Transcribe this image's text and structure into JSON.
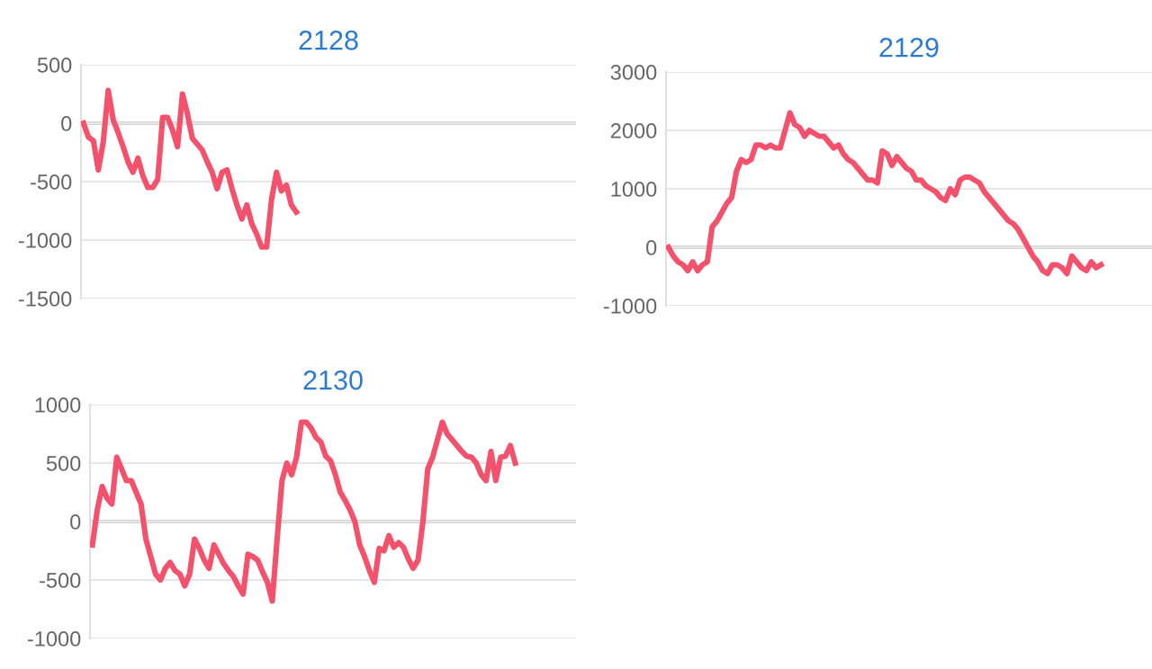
{
  "chart_data": [
    {
      "type": "line",
      "title": "2128",
      "categories": [
        null,
        null,
        null,
        null,
        null,
        null,
        null,
        null,
        null,
        null,
        null,
        null,
        null,
        null,
        null,
        null,
        null,
        null,
        null,
        null,
        null,
        null,
        null,
        null,
        null,
        null,
        null,
        null,
        null,
        null,
        null,
        null,
        null,
        null,
        null,
        null,
        null,
        null,
        null,
        null,
        null,
        null,
        null,
        null,
        null,
        null,
        null,
        null,
        null,
        null,
        null,
        null,
        null,
        null,
        null,
        null,
        null,
        null,
        null,
        null,
        null,
        null,
        null,
        null,
        null,
        null,
        null,
        null,
        null,
        null,
        null,
        null,
        null,
        null,
        null,
        null,
        null,
        null,
        null,
        null,
        null,
        null,
        null,
        null,
        null,
        null,
        null,
        null,
        null,
        null,
        null,
        null,
        null,
        null,
        null,
        null,
        null,
        null,
        null,
        null
      ],
      "series": [
        {
          "color": "#f4516c",
          "values": [
            0,
            -120,
            -150,
            -400,
            -160,
            280,
            30,
            -80,
            -200,
            -330,
            -420,
            -300,
            -450,
            -550,
            -550,
            -480,
            50,
            50,
            -60,
            -200,
            250,
            80,
            -130,
            -180,
            -230,
            -330,
            -420,
            -560,
            -420,
            -400,
            -560,
            -700,
            -820,
            -700,
            -860,
            -950,
            -1060,
            -1060,
            -650,
            -420,
            -580,
            -530,
            -700,
            -760,
            null,
            null,
            null,
            null,
            null,
            null,
            null,
            null,
            null,
            null,
            null,
            null,
            null,
            null,
            null,
            null,
            null,
            null,
            null,
            null,
            null,
            null,
            null,
            null,
            null,
            null,
            null,
            null,
            null,
            null,
            null,
            null,
            null,
            null,
            null,
            null,
            null,
            null,
            null,
            null,
            null,
            null,
            null,
            null,
            null,
            null,
            null,
            null,
            null,
            null,
            null,
            null,
            null,
            null,
            null,
            null
          ]
        }
      ],
      "ylim": [
        -1500,
        500
      ],
      "yticks": [
        -1500,
        -1000,
        -500,
        0,
        500
      ],
      "grid": "y",
      "tick_labels": "y",
      "marker": "none",
      "line_style": "solid",
      "ref_lines": [
        {
          "axis": "y",
          "value": 0,
          "color": "#aaaaaa"
        }
      ]
    },
    {
      "type": "line",
      "title": "2129",
      "categories": [
        null,
        null,
        null,
        null,
        null,
        null,
        null,
        null,
        null,
        null,
        null,
        null,
        null,
        null,
        null,
        null,
        null,
        null,
        null,
        null,
        null,
        null,
        null,
        null,
        null,
        null,
        null,
        null,
        null,
        null,
        null,
        null,
        null,
        null,
        null,
        null,
        null,
        null,
        null,
        null,
        null,
        null,
        null,
        null,
        null,
        null,
        null,
        null,
        null,
        null,
        null,
        null,
        null,
        null,
        null,
        null,
        null,
        null,
        null,
        null,
        null,
        null,
        null,
        null,
        null,
        null,
        null,
        null,
        null,
        null,
        null,
        null,
        null,
        null,
        null,
        null,
        null,
        null,
        null,
        null,
        null,
        null,
        null,
        null,
        null,
        null,
        null,
        null,
        null,
        null,
        null,
        null,
        null,
        null,
        null,
        null,
        null,
        null,
        null,
        null
      ],
      "series": [
        {
          "color": "#f4516c",
          "values": [
            0,
            -150,
            -250,
            -300,
            -400,
            -250,
            -400,
            -300,
            -250,
            350,
            450,
            600,
            750,
            850,
            1300,
            1500,
            1450,
            1500,
            1750,
            1750,
            1700,
            1750,
            1700,
            1700,
            2000,
            2300,
            2100,
            2050,
            1900,
            2000,
            1950,
            1900,
            1900,
            1800,
            1700,
            1750,
            1600,
            1500,
            1450,
            1350,
            1250,
            1150,
            1150,
            1100,
            1650,
            1600,
            1400,
            1550,
            1450,
            1350,
            1300,
            1150,
            1150,
            1050,
            1000,
            950,
            850,
            800,
            1000,
            900,
            1150,
            1200,
            1200,
            1150,
            1100,
            950,
            850,
            750,
            650,
            550,
            450,
            400,
            300,
            150,
            0,
            -150,
            -250,
            -400,
            -450,
            -300,
            -300,
            -350,
            -450,
            -150,
            -250,
            -350,
            -400,
            -250,
            -350,
            -300,
            null,
            null,
            null,
            null,
            null,
            null,
            null,
            null,
            null,
            null
          ]
        }
      ],
      "ylim": [
        -1000,
        3000
      ],
      "yticks": [
        -1000,
        0,
        1000,
        2000,
        3000
      ],
      "grid": "y",
      "tick_labels": "y",
      "marker": "none",
      "line_style": "solid",
      "ref_lines": [
        {
          "axis": "y",
          "value": 0,
          "color": "#aaaaaa"
        }
      ]
    },
    {
      "type": "line",
      "title": "2130",
      "categories": [
        null,
        null,
        null,
        null,
        null,
        null,
        null,
        null,
        null,
        null,
        null,
        null,
        null,
        null,
        null,
        null,
        null,
        null,
        null,
        null,
        null,
        null,
        null,
        null,
        null,
        null,
        null,
        null,
        null,
        null,
        null,
        null,
        null,
        null,
        null,
        null,
        null,
        null,
        null,
        null,
        null,
        null,
        null,
        null,
        null,
        null,
        null,
        null,
        null,
        null,
        null,
        null,
        null,
        null,
        null,
        null,
        null,
        null,
        null,
        null,
        null,
        null,
        null,
        null,
        null,
        null,
        null,
        null,
        null,
        null,
        null,
        null,
        null,
        null,
        null,
        null,
        null,
        null,
        null,
        null,
        null,
        null,
        null,
        null,
        null,
        null,
        null,
        null,
        null,
        null,
        null,
        null,
        null,
        null,
        null,
        null,
        null,
        null,
        null,
        null
      ],
      "series": [
        {
          "color": "#f4516c",
          "values": [
            -200,
            100,
            300,
            200,
            150,
            550,
            450,
            350,
            350,
            250,
            150,
            -150,
            -300,
            -450,
            -500,
            -400,
            -350,
            -420,
            -450,
            -550,
            -450,
            -150,
            -230,
            -330,
            -400,
            -200,
            -280,
            -360,
            -420,
            -470,
            -550,
            -620,
            -280,
            -300,
            -330,
            -430,
            -520,
            -680,
            -150,
            350,
            500,
            400,
            550,
            850,
            850,
            800,
            720,
            680,
            560,
            520,
            400,
            250,
            180,
            100,
            0,
            -200,
            -300,
            -420,
            -520,
            -230,
            -250,
            -120,
            -220,
            -180,
            -220,
            -320,
            -400,
            -330,
            0,
            450,
            550,
            700,
            850,
            750,
            700,
            650,
            600,
            560,
            550,
            500,
            400,
            350,
            600,
            350,
            550,
            560,
            650,
            500,
            null,
            null,
            null,
            null,
            null,
            null,
            null,
            null,
            null,
            null,
            null,
            null
          ]
        }
      ],
      "ylim": [
        -1000,
        1000
      ],
      "yticks": [
        -1000,
        -500,
        0,
        500,
        1000
      ],
      "grid": "y",
      "tick_labels": "y",
      "marker": "none",
      "line_style": "solid",
      "ref_lines": [
        {
          "axis": "y",
          "value": 0,
          "color": "#aaaaaa"
        }
      ]
    }
  ]
}
